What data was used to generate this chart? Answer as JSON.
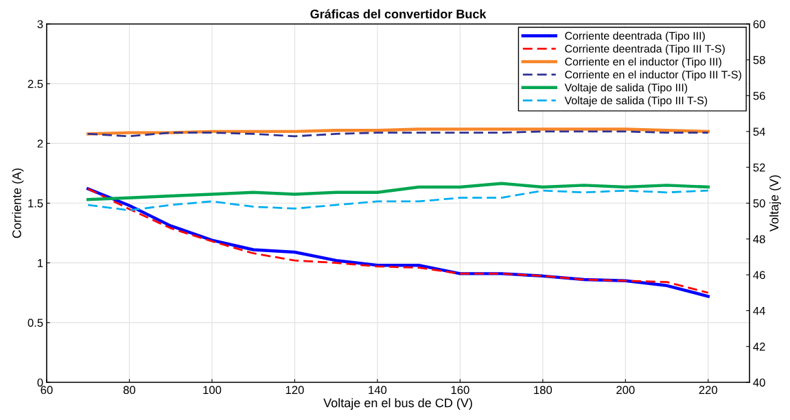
{
  "chart_data": {
    "type": "line",
    "title": "Gráficas del convertidor Buck",
    "xlabel": "Voltaje en el bus de CD (V)",
    "ylabel": "Corriente (A)",
    "y2label": "Voltaje (V)",
    "x": [
      70,
      80,
      90,
      100,
      110,
      120,
      130,
      140,
      150,
      160,
      170,
      180,
      190,
      200,
      210,
      220
    ],
    "xlim": [
      60,
      230
    ],
    "xticks": [
      60,
      80,
      100,
      120,
      140,
      160,
      180,
      200,
      220
    ],
    "ylim": [
      0,
      3
    ],
    "yticks": [
      0,
      0.5,
      1,
      1.5,
      2,
      2.5,
      3
    ],
    "y2lim": [
      40,
      60
    ],
    "y2ticks": [
      40,
      42,
      44,
      46,
      48,
      50,
      52,
      54,
      56,
      58,
      60
    ],
    "grid": true,
    "legend": "top right",
    "series": [
      {
        "name": "Corriente deentrada (Tipo III)",
        "color": "#0000ff",
        "line_style": "solid",
        "values": [
          1.62,
          1.48,
          1.31,
          1.19,
          1.11,
          1.09,
          1.02,
          0.98,
          0.98,
          0.91,
          0.91,
          0.89,
          0.86,
          0.85,
          0.81,
          0.72
        ]
      },
      {
        "name": "Corriente deentrada (Tipo III T-S)",
        "color": "#ff0000",
        "line_style": "dashed",
        "values": [
          1.62,
          1.45,
          1.29,
          1.18,
          1.08,
          1.02,
          1.0,
          0.97,
          0.96,
          0.91,
          0.91,
          0.89,
          0.86,
          0.85,
          0.84,
          0.75
        ]
      },
      {
        "name": "Corriente en el inductor (Tipo III)",
        "color": "#f7862a",
        "line_style": "solid",
        "values": [
          2.08,
          2.09,
          2.09,
          2.1,
          2.1,
          2.1,
          2.11,
          2.11,
          2.12,
          2.12,
          2.12,
          2.12,
          2.12,
          2.12,
          2.11,
          2.1
        ]
      },
      {
        "name": "Corriente en el inductor (Tipo III T-S)",
        "color": "#2e3192",
        "line_style": "dashed",
        "values": [
          2.08,
          2.06,
          2.09,
          2.09,
          2.08,
          2.06,
          2.08,
          2.09,
          2.09,
          2.09,
          2.09,
          2.1,
          2.1,
          2.1,
          2.09,
          2.09
        ]
      },
      {
        "name": "Voltaje de salida (Tipo III)",
        "color": "#00a651",
        "line_style": "solid",
        "axis": "y2",
        "values": [
          50.2,
          50.3,
          50.4,
          50.5,
          50.6,
          50.5,
          50.6,
          50.6,
          50.9,
          50.9,
          51.1,
          50.9,
          51.0,
          50.9,
          51.0,
          50.9
        ]
      },
      {
        "name": "Voltaje de salida (Tipo III T-S)",
        "color": "#00aeef",
        "line_style": "dashed",
        "axis": "y2",
        "values": [
          49.9,
          49.6,
          49.9,
          50.1,
          49.8,
          49.7,
          49.9,
          50.1,
          50.1,
          50.3,
          50.3,
          50.7,
          50.6,
          50.7,
          50.6,
          50.7
        ]
      }
    ]
  }
}
